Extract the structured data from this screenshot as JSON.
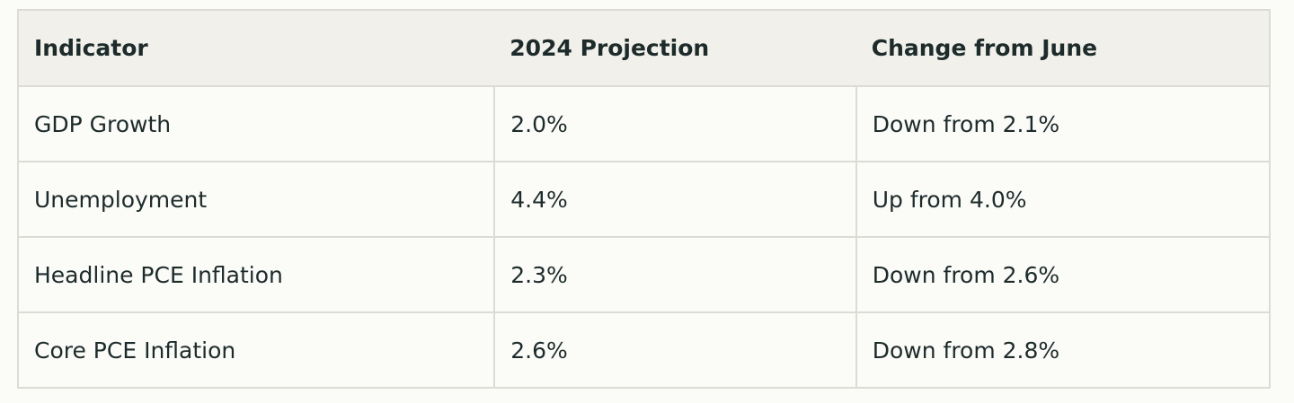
{
  "table": {
    "headers": [
      "Indicator",
      "2024 Projection",
      "Change from June"
    ],
    "rows": [
      [
        "GDP Growth",
        "2.0%",
        "Down from 2.1%"
      ],
      [
        "Unemployment",
        "4.4%",
        "Up from 4.0%"
      ],
      [
        "Headline PCE Inflation",
        "2.3%",
        "Down from 2.6%"
      ],
      [
        "Core PCE Inflation",
        "2.6%",
        "Down from 2.8%"
      ]
    ]
  }
}
